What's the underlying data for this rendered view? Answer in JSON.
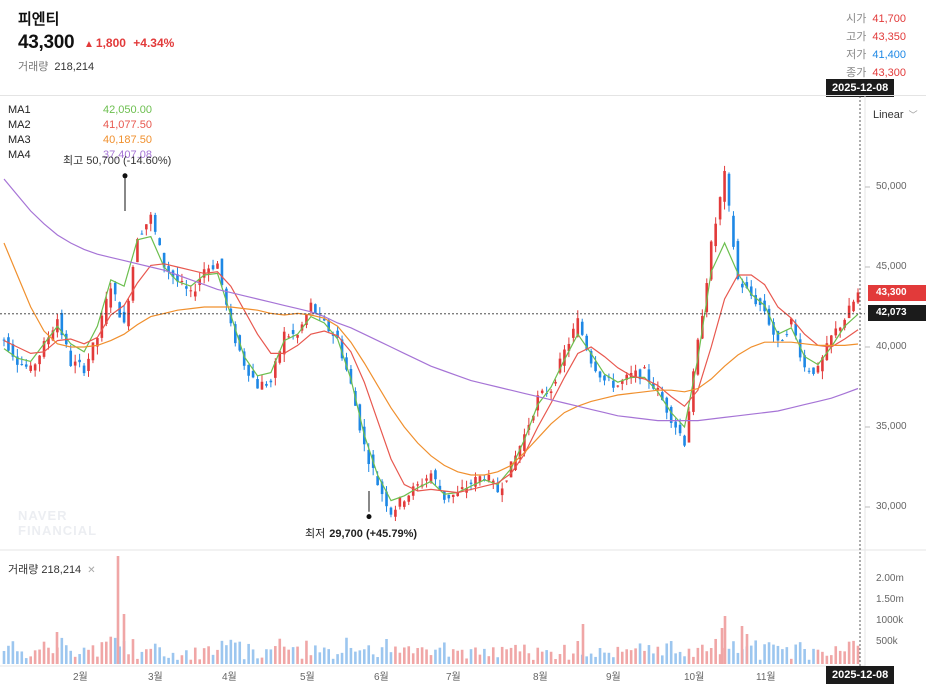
{
  "stock": {
    "name": "피엔티",
    "price": "43,300",
    "change": "1,800",
    "change_pct": "+4.34%",
    "volume_label": "거래량",
    "volume": "218,214"
  },
  "ohlc": {
    "open_label": "시가",
    "open": "41,700",
    "high_label": "고가",
    "high": "43,350",
    "low_label": "저가",
    "low": "41,400",
    "close_label": "종가",
    "close": "43,300"
  },
  "colors": {
    "up": "#e23a3a",
    "down": "#1e88e5",
    "ma1": "#6cbf4f",
    "ma2": "#e8584f",
    "ma3": "#f0902e",
    "ma4": "#a674d6"
  },
  "ma": [
    {
      "name": "MA1",
      "value": "42,050.00",
      "color": "#6cbf4f"
    },
    {
      "name": "MA2",
      "value": "41,077.50",
      "color": "#e8584f"
    },
    {
      "name": "MA3",
      "value": "40,187.50",
      "color": "#f0902e"
    },
    {
      "name": "MA4",
      "value": "37,407.08",
      "color": "#a674d6"
    }
  ],
  "scale_label": "Linear",
  "crosshair_date": "2025-12-08",
  "price_tags": {
    "current": "43,300",
    "cursor": "42,073"
  },
  "annotations": {
    "high_label": "최고 50,700 (-14.60%)",
    "low_prefix": "최저",
    "low_value": "29,700 (+45.79%)"
  },
  "volume_panel": {
    "label": "거래량 218,214",
    "ticks": [
      "2.00m",
      "1.50m",
      "1000k",
      "500k"
    ]
  },
  "watermark": [
    "NAVER",
    "FINANCIAL"
  ],
  "chart_data": {
    "type": "candlestick",
    "y_ticks": [
      30000,
      35000,
      40000,
      45000,
      50000
    ],
    "y_tick_labels": [
      "30,000",
      "35,000",
      "40,000",
      "45,000",
      "50,000"
    ],
    "x_tick_labels": [
      "2월",
      "3월",
      "4월",
      "5월",
      "6월",
      "7월",
      "8월",
      "9월",
      "10월",
      "11월"
    ],
    "ylim": [
      28000,
      54000
    ],
    "close_series": [
      40500,
      39200,
      38500,
      40100,
      41800,
      39000,
      38700,
      40600,
      43900,
      41300,
      47000,
      48100,
      45100,
      44100,
      43200,
      44900,
      45200,
      41200,
      39000,
      37600,
      37800,
      40800,
      40700,
      42600,
      41400,
      40500,
      37600,
      33800,
      31500,
      29700,
      30600,
      31300,
      32100,
      30600,
      30800,
      31500,
      32000,
      31000,
      32500,
      34500,
      36800,
      37400,
      39700,
      41600,
      39200,
      37900,
      37600,
      38200,
      38400,
      37200,
      35600,
      34100,
      40200,
      46300,
      50700,
      44200,
      43200,
      42300,
      40100,
      41600,
      38700,
      38500,
      40600,
      41800,
      43300
    ],
    "ma_series": [
      {
        "name": "MA1",
        "values": [
          39900,
          39300,
          39100,
          40200,
          41300,
          40200,
          39700,
          41300,
          44200,
          43800,
          46700,
          46900,
          45000,
          44100,
          43800,
          44500,
          44600,
          42000,
          39400,
          38200,
          38400,
          40400,
          40800,
          41900,
          41500,
          40500,
          38000,
          34500,
          32000,
          30400,
          30700,
          31200,
          31600,
          30800,
          30900,
          31300,
          31700,
          31400,
          32400,
          34200,
          36400,
          37500,
          39200,
          40800,
          39600,
          38300,
          37800,
          38100,
          38100,
          37200,
          35900,
          35000,
          39300,
          44700,
          46500,
          44600,
          43300,
          42600,
          40800,
          41200,
          39400,
          38900,
          40000,
          41300,
          42050
        ]
      },
      {
        "name": "MA2",
        "values": [
          40400,
          40000,
          39600,
          39700,
          40400,
          40500,
          40200,
          40600,
          42000,
          42600,
          44000,
          45100,
          45200,
          45000,
          44800,
          44600,
          44700,
          43800,
          42300,
          40800,
          39600,
          39600,
          40100,
          40800,
          41000,
          40700,
          39700,
          37800,
          35400,
          33000,
          31400,
          31000,
          31100,
          31000,
          30900,
          31100,
          31300,
          31500,
          32100,
          33300,
          35000,
          36500,
          38100,
          39600,
          40000,
          39400,
          38700,
          38200,
          38000,
          37600,
          36900,
          36300,
          37300,
          40000,
          43000,
          44500,
          44500,
          43900,
          42500,
          41800,
          40800,
          40100,
          40000,
          40500,
          41077
        ]
      },
      {
        "name": "MA3",
        "values": [
          46500,
          44500,
          42500,
          41000,
          40200,
          40000,
          40000,
          40100,
          40400,
          40800,
          41400,
          41900,
          42100,
          42300,
          42400,
          42500,
          42500,
          42500,
          42400,
          42300,
          42100,
          42000,
          42100,
          42000,
          41800,
          41300,
          40300,
          39000,
          37600,
          36200,
          35000,
          34000,
          33200,
          32600,
          32200,
          32000,
          32000,
          32200,
          32600,
          33400,
          34300,
          35200,
          35900,
          36300,
          36600,
          36800,
          37000,
          37100,
          37200,
          37300,
          37300,
          37200,
          37400,
          38000,
          38800,
          39500,
          40000,
          40300,
          40300,
          40300,
          40200,
          40100,
          40100,
          40100,
          40187
        ]
      },
      {
        "name": "MA4",
        "values": [
          50500,
          49500,
          48500,
          47700,
          47000,
          46500,
          46100,
          45800,
          45600,
          45400,
          45200,
          45000,
          44800,
          44500,
          44200,
          43900,
          43600,
          43400,
          43200,
          43000,
          42800,
          42600,
          42400,
          42200,
          41900,
          41500,
          41200,
          40800,
          40400,
          40000,
          39600,
          39200,
          38800,
          38500,
          38200,
          37900,
          37700,
          37500,
          37300,
          37100,
          36900,
          36700,
          36500,
          36300,
          36100,
          35900,
          35700,
          35600,
          35500,
          35400,
          35400,
          35400,
          35400,
          35500,
          35600,
          35700,
          35800,
          35900,
          36000,
          36200,
          36400,
          36600,
          36800,
          37100,
          37407
        ]
      }
    ],
    "grid": false,
    "legend": "top-left"
  }
}
